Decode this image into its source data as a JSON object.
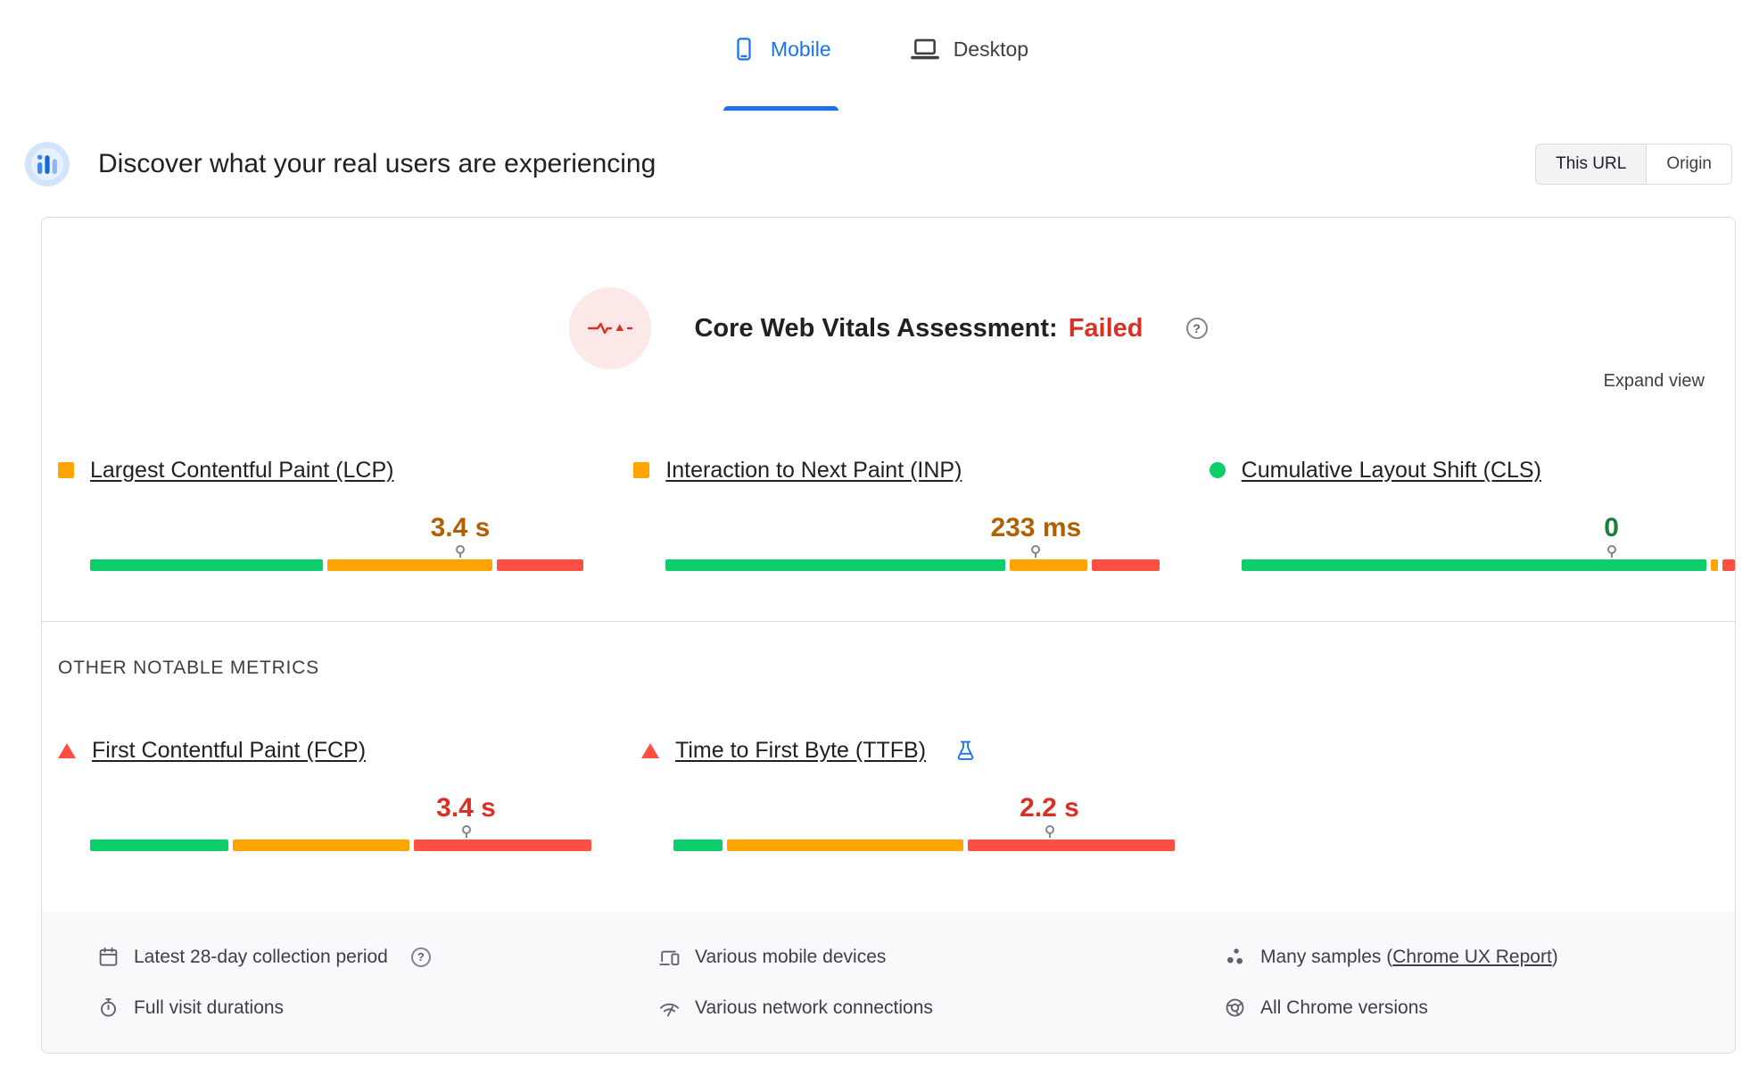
{
  "device_tabs": {
    "mobile": "Mobile",
    "desktop": "Desktop",
    "selected": "Mobile"
  },
  "header": {
    "title": "Discover what your real users are experiencing",
    "scope_toggle": {
      "this_url": "This URL",
      "origin": "Origin",
      "selected": "This URL"
    }
  },
  "assessment": {
    "title": "Core Web Vitals Assessment:",
    "status": "Failed",
    "expand_label": "Expand view"
  },
  "core_metrics": [
    {
      "name": "Largest Contentful Paint (LCP)",
      "value": "3.4 s",
      "status": "needs_improvement",
      "segments": [
        48,
        34,
        18
      ],
      "marker_pct": 75
    },
    {
      "name": "Interaction to Next Paint (INP)",
      "value": "233 ms",
      "status": "needs_improvement",
      "segments": [
        70,
        16,
        14
      ],
      "marker_pct": 75
    },
    {
      "name": "Cumulative Layout Shift (CLS)",
      "value": "0",
      "status": "good",
      "segments": [
        96,
        1.5,
        2.5
      ],
      "marker_pct": 75
    }
  ],
  "other_metrics_title": "OTHER NOTABLE METRICS",
  "other_metrics": [
    {
      "name": "First Contentful Paint (FCP)",
      "value": "3.4 s",
      "status": "poor",
      "segments": [
        28,
        36,
        36
      ],
      "marker_pct": 75
    },
    {
      "name": "Time to First Byte (TTFB)",
      "value": "2.2 s",
      "status": "poor",
      "segments": [
        10,
        48,
        42
      ],
      "marker_pct": 75
    }
  ],
  "data_notes": {
    "collection_period": "Latest 28-day collection period",
    "visit_durations": "Full visit durations",
    "devices": "Various mobile devices",
    "connections": "Various network connections",
    "samples_prefix": "Many samples (",
    "samples_link": "Chrome UX Report",
    "samples_suffix": ")",
    "chrome_versions": "All Chrome versions"
  },
  "colors": {
    "good": "#0cce6b",
    "needs_improvement": "#ffa400",
    "poor": "#ff4e42",
    "accent_blue": "#1a73e8",
    "failed_red": "#d93025"
  }
}
